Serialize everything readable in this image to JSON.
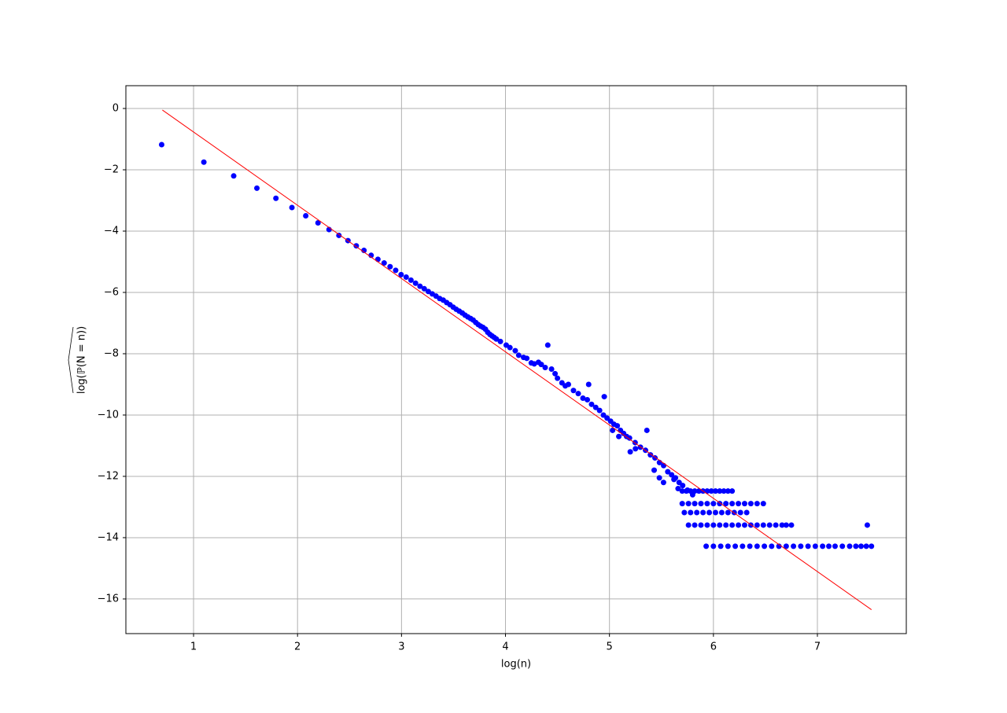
{
  "chart_data": {
    "type": "scatter",
    "xlabel": "log(n)",
    "ylabel": "log(ℙ(N = n))",
    "xlim": [
      0.349,
      7.855
    ],
    "ylim": [
      -17.13,
      0.744
    ],
    "xticks": [
      1,
      2,
      3,
      4,
      5,
      6,
      7
    ],
    "yticks": [
      {
        "value": 0,
        "label": "0"
      },
      {
        "value": -2,
        "label": "−2"
      },
      {
        "value": -4,
        "label": "−4"
      },
      {
        "value": -6,
        "label": "−6"
      },
      {
        "value": -8,
        "label": "−8"
      },
      {
        "value": -10,
        "label": "−10"
      },
      {
        "value": -12,
        "label": "−12"
      },
      {
        "value": -14,
        "label": "−14"
      },
      {
        "value": -16,
        "label": "−16"
      }
    ],
    "grid": true,
    "series": [
      {
        "type": "scatter",
        "color": "#0000ff",
        "x": [
          0.693,
          1.099,
          1.386,
          1.609,
          1.792,
          1.946,
          2.079,
          2.197,
          2.303,
          2.398,
          2.485,
          2.565,
          2.639,
          2.708,
          2.773,
          2.833,
          2.89,
          2.944,
          2.996,
          3.045,
          3.091,
          3.135,
          3.178,
          3.219,
          3.258,
          3.296,
          3.332,
          3.367,
          3.401,
          3.434,
          3.466,
          3.497,
          3.526,
          3.555,
          3.584,
          3.611,
          3.638,
          3.664,
          3.689,
          3.714,
          3.738,
          3.761,
          3.784,
          3.807,
          3.829,
          3.85,
          3.871,
          3.892,
          3.912,
          3.951,
          4.007,
          4.043,
          4.094,
          4.127,
          4.174,
          4.205,
          4.248,
          4.277,
          4.317,
          4.344,
          4.382,
          4.407,
          4.443,
          4.477,
          4.5,
          4.543,
          4.575,
          4.605,
          4.654,
          4.7,
          4.745,
          4.787,
          4.828,
          4.868,
          4.905,
          4.942,
          4.977,
          5.011,
          5.043,
          5.075,
          5.106,
          5.136,
          5.165,
          5.193,
          5.247,
          5.298,
          5.347,
          5.394,
          5.438,
          5.481,
          5.521,
          5.561,
          5.598,
          5.635,
          5.67,
          5.704,
          5.75,
          5.8,
          4.8,
          4.95,
          5.2,
          5.36,
          5.43,
          5.48,
          5.52,
          5.03,
          5.09,
          5.25,
          5.62,
          5.66,
          5.7,
          5.74,
          5.78,
          5.82,
          5.86,
          5.9,
          5.94,
          5.98,
          6.02,
          6.06,
          6.1,
          6.14,
          6.18,
          5.7,
          5.76,
          5.82,
          5.88,
          5.94,
          6.0,
          6.06,
          6.12,
          6.18,
          6.24,
          6.3,
          6.36,
          6.42,
          6.48,
          5.72,
          5.78,
          5.84,
          5.9,
          5.96,
          6.02,
          6.08,
          6.14,
          6.2,
          6.26,
          6.32,
          5.76,
          5.82,
          5.88,
          5.94,
          6.0,
          6.06,
          6.12,
          6.18,
          6.24,
          6.3,
          6.36,
          6.42,
          6.48,
          6.54,
          6.6,
          6.66,
          6.7,
          6.75,
          7.48,
          5.93,
          6.0,
          6.07,
          6.14,
          6.21,
          6.28,
          6.35,
          6.42,
          6.49,
          6.56,
          6.63,
          6.7,
          6.77,
          6.84,
          6.91,
          6.98,
          7.05,
          7.11,
          7.17,
          7.24,
          7.31,
          7.37,
          7.42,
          7.47,
          7.52
        ],
        "values": [
          -1.18,
          -1.75,
          -2.2,
          -2.6,
          -2.93,
          -3.23,
          -3.5,
          -3.73,
          -3.95,
          -4.14,
          -4.31,
          -4.48,
          -4.63,
          -4.79,
          -4.92,
          -5.04,
          -5.16,
          -5.28,
          -5.42,
          -5.5,
          -5.6,
          -5.7,
          -5.8,
          -5.88,
          -5.97,
          -6.05,
          -6.12,
          -6.2,
          -6.25,
          -6.33,
          -6.4,
          -6.48,
          -6.55,
          -6.61,
          -6.67,
          -6.74,
          -6.8,
          -6.85,
          -6.9,
          -6.98,
          -7.05,
          -7.1,
          -7.14,
          -7.2,
          -7.3,
          -7.37,
          -7.42,
          -7.47,
          -7.52,
          -7.6,
          -7.72,
          -7.8,
          -7.9,
          -8.05,
          -8.12,
          -8.15,
          -8.3,
          -8.33,
          -8.28,
          -8.35,
          -8.45,
          -7.72,
          -8.5,
          -8.65,
          -8.8,
          -8.95,
          -9.05,
          -9.0,
          -9.2,
          -9.3,
          -9.45,
          -9.5,
          -9.65,
          -9.75,
          -9.85,
          -10.0,
          -10.1,
          -10.2,
          -10.3,
          -10.35,
          -10.5,
          -10.6,
          -10.7,
          -10.75,
          -10.9,
          -11.05,
          -11.15,
          -11.3,
          -11.4,
          -11.55,
          -11.65,
          -11.85,
          -11.95,
          -12.05,
          -12.2,
          -12.3,
          -12.45,
          -12.6,
          -9.0,
          -9.4,
          -11.2,
          -10.5,
          -11.8,
          -12.05,
          -12.2,
          -10.5,
          -10.7,
          -11.1,
          -12.1,
          -12.4,
          -12.48,
          -12.48,
          -12.48,
          -12.48,
          -12.48,
          -12.48,
          -12.48,
          -12.48,
          -12.48,
          -12.48,
          -12.48,
          -12.48,
          -12.48,
          -12.89,
          -12.89,
          -12.89,
          -12.89,
          -12.89,
          -12.89,
          -12.89,
          -12.89,
          -12.89,
          -12.89,
          -12.89,
          -12.89,
          -12.89,
          -12.89,
          -13.18,
          -13.18,
          -13.18,
          -13.18,
          -13.18,
          -13.18,
          -13.18,
          -13.18,
          -13.18,
          -13.18,
          -13.18,
          -13.59,
          -13.59,
          -13.59,
          -13.59,
          -13.59,
          -13.59,
          -13.59,
          -13.59,
          -13.59,
          -13.59,
          -13.59,
          -13.59,
          -13.59,
          -13.59,
          -13.59,
          -13.59,
          -13.59,
          -13.59,
          -13.59,
          -14.28,
          -14.28,
          -14.28,
          -14.28,
          -14.28,
          -14.28,
          -14.28,
          -14.28,
          -14.28,
          -14.28,
          -14.28,
          -14.28,
          -14.28,
          -14.28,
          -14.28,
          -14.28,
          -14.28,
          -14.28,
          -14.28,
          -14.28,
          -14.28,
          -14.28,
          -14.28,
          -14.28,
          -14.28
        ]
      },
      {
        "type": "line",
        "color": "#ff0000",
        "x": [
          0.7,
          7.52
        ],
        "values": [
          -0.05,
          -16.35
        ]
      }
    ]
  }
}
